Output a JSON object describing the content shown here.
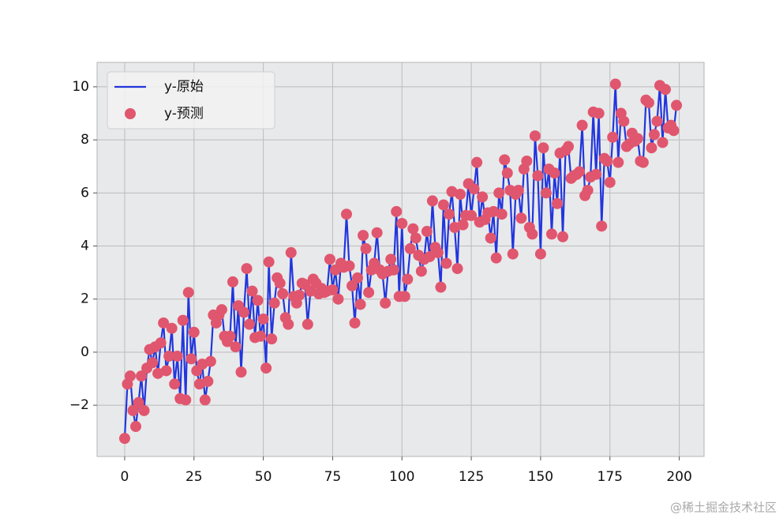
{
  "chart_data": {
    "type": "line_scatter",
    "series": [
      {
        "name": "y-原始",
        "kind": "line",
        "color": "#2236dc",
        "values": [
          -3.25,
          -1.2,
          -0.9,
          -2.2,
          -2.8,
          -1.9,
          -0.9,
          -2.2,
          -0.6,
          0.1,
          -0.4,
          0.2,
          -0.8,
          0.35,
          1.1,
          -0.7,
          -0.15,
          0.9,
          -1.2,
          -0.15,
          -1.75,
          1.2,
          -1.8,
          2.25,
          -0.25,
          0.75,
          -0.7,
          -1.2,
          -0.45,
          -1.8,
          -1.1,
          -0.35,
          1.4,
          1.1,
          1.4,
          1.6,
          0.6,
          0.4,
          0.6,
          2.65,
          0.2,
          1.75,
          -0.75,
          1.5,
          3.15,
          1.05,
          2.3,
          0.55,
          1.95,
          0.6,
          1.25,
          -0.6,
          3.4,
          0.5,
          1.85,
          2.8,
          2.6,
          2.2,
          1.3,
          1.05,
          3.75,
          2.1,
          1.85,
          2.15,
          2.6,
          2.55,
          1.05,
          2.3,
          2.75,
          2.6,
          2.2,
          2.4,
          2.25,
          2.3,
          3.5,
          2.35,
          3.1,
          2.0,
          3.35,
          3.2,
          5.2,
          3.25,
          2.5,
          1.1,
          2.8,
          1.8,
          4.4,
          3.9,
          2.25,
          3.1,
          3.35,
          4.5,
          3.1,
          2.95,
          1.85,
          3.05,
          3.5,
          3.1,
          5.3,
          2.1,
          4.85,
          2.1,
          2.75,
          3.9,
          4.65,
          4.3,
          3.65,
          3.05,
          3.5,
          4.55,
          3.6,
          5.7,
          3.95,
          3.75,
          2.45,
          5.55,
          3.35,
          5.2,
          6.05,
          4.7,
          3.15,
          5.95,
          4.8,
          5.15,
          6.35,
          5.15,
          6.15,
          7.15,
          4.9,
          5.85,
          5.0,
          5.25,
          4.3,
          5.3,
          3.55,
          6.0,
          5.2,
          7.25,
          6.75,
          6.1,
          3.7,
          5.95,
          6.1,
          5.05,
          6.9,
          7.2,
          4.7,
          4.45,
          8.15,
          6.65,
          3.7,
          7.7,
          6.0,
          6.9,
          4.45,
          6.75,
          5.6,
          7.5,
          4.35,
          7.6,
          7.75,
          6.55,
          6.65,
          6.7,
          6.8,
          8.55,
          5.9,
          6.1,
          6.6,
          9.05,
          6.7,
          9.0,
          4.75,
          7.3,
          7.2,
          6.4,
          8.1,
          10.1,
          7.15,
          9.0,
          8.7,
          7.75,
          7.85,
          8.25,
          7.95,
          8.05,
          7.2,
          7.15,
          9.5,
          9.4,
          7.7,
          8.2,
          8.7,
          10.05,
          7.9,
          9.9,
          8.45,
          8.55,
          8.35,
          9.3
        ]
      },
      {
        "name": "y-预测",
        "kind": "scatter",
        "color": "#e0566e",
        "values": [
          -3.25,
          -1.2,
          -0.9,
          -2.2,
          -2.8,
          -1.9,
          -0.9,
          -2.2,
          -0.6,
          0.1,
          -0.4,
          0.2,
          -0.8,
          0.35,
          1.1,
          -0.7,
          -0.15,
          0.9,
          -1.2,
          -0.15,
          -1.75,
          1.2,
          -1.8,
          2.25,
          -0.25,
          0.75,
          -0.7,
          -1.2,
          -0.45,
          -1.8,
          -1.1,
          -0.35,
          1.4,
          1.1,
          1.4,
          1.6,
          0.6,
          0.4,
          0.6,
          2.65,
          0.2,
          1.75,
          -0.75,
          1.5,
          3.15,
          1.05,
          2.3,
          0.55,
          1.95,
          0.6,
          1.25,
          -0.6,
          3.4,
          0.5,
          1.85,
          2.8,
          2.6,
          2.2,
          1.3,
          1.05,
          3.75,
          2.1,
          1.85,
          2.15,
          2.6,
          2.55,
          1.05,
          2.3,
          2.75,
          2.6,
          2.2,
          2.4,
          2.25,
          2.3,
          3.5,
          2.35,
          3.1,
          2.0,
          3.35,
          3.2,
          5.2,
          3.25,
          2.5,
          1.1,
          2.8,
          1.8,
          4.4,
          3.9,
          2.25,
          3.1,
          3.35,
          4.5,
          3.1,
          2.95,
          1.85,
          3.05,
          3.5,
          3.1,
          5.3,
          2.1,
          4.85,
          2.1,
          2.75,
          3.9,
          4.65,
          4.3,
          3.65,
          3.05,
          3.5,
          4.55,
          3.6,
          5.7,
          3.95,
          3.75,
          2.45,
          5.55,
          3.35,
          5.2,
          6.05,
          4.7,
          3.15,
          5.95,
          4.8,
          5.15,
          6.35,
          5.15,
          6.15,
          7.15,
          4.9,
          5.85,
          5.0,
          5.25,
          4.3,
          5.3,
          3.55,
          6.0,
          5.2,
          7.25,
          6.75,
          6.1,
          3.7,
          5.95,
          6.1,
          5.05,
          6.9,
          7.2,
          4.7,
          4.45,
          8.15,
          6.65,
          3.7,
          7.7,
          6.0,
          6.9,
          4.45,
          6.75,
          5.6,
          7.5,
          4.35,
          7.6,
          7.75,
          6.55,
          6.65,
          6.7,
          6.8,
          8.55,
          5.9,
          6.1,
          6.6,
          9.05,
          6.7,
          9.0,
          4.75,
          7.3,
          7.2,
          6.4,
          8.1,
          10.1,
          7.15,
          9.0,
          8.7,
          7.75,
          7.85,
          8.25,
          7.95,
          8.05,
          7.2,
          7.15,
          9.5,
          9.4,
          7.7,
          8.2,
          8.7,
          10.05,
          7.9,
          9.9,
          8.45,
          8.55,
          8.35,
          9.3
        ]
      }
    ],
    "xlim": [
      -9.95,
      208.95
    ],
    "ylim": [
      -3.93,
      10.92
    ],
    "xticks": [
      0,
      25,
      50,
      75,
      100,
      125,
      150,
      175,
      200
    ],
    "yticks": [
      {
        "value": -2,
        "label": "−2"
      },
      0,
      2,
      4,
      6,
      8,
      10
    ],
    "grid": true,
    "legend": "upper left",
    "watermark": "@稀土掘金技术社区"
  }
}
